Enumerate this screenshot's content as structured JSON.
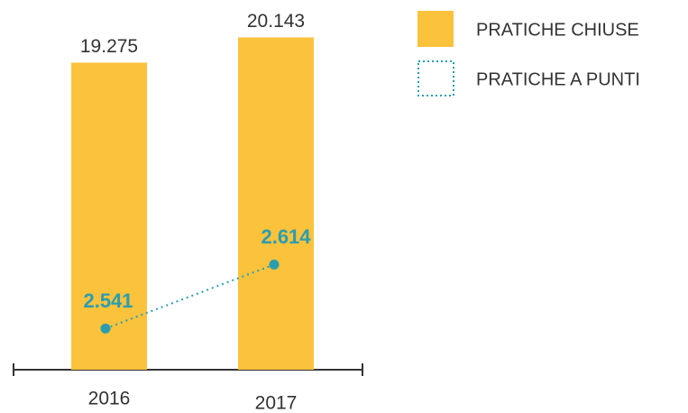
{
  "chart_data": {
    "type": "bar",
    "categories": [
      "2016",
      "2017"
    ],
    "series": [
      {
        "name": "PRATICHE CHIUSE",
        "color": "#fbc23c",
        "values": [
          19275,
          20143
        ],
        "value_labels": [
          "19.275",
          "20.143"
        ]
      },
      {
        "name": "PRATICHE A PUNTI",
        "type": "line",
        "axis": "y2",
        "color": "#2a9db0",
        "values": [
          2541,
          2614
        ],
        "value_labels": [
          "2.541",
          "2.614"
        ]
      }
    ],
    "ylim": [
      8700,
      20500
    ],
    "y2lim": [
      2494,
      2885
    ],
    "legend": "top-right"
  }
}
